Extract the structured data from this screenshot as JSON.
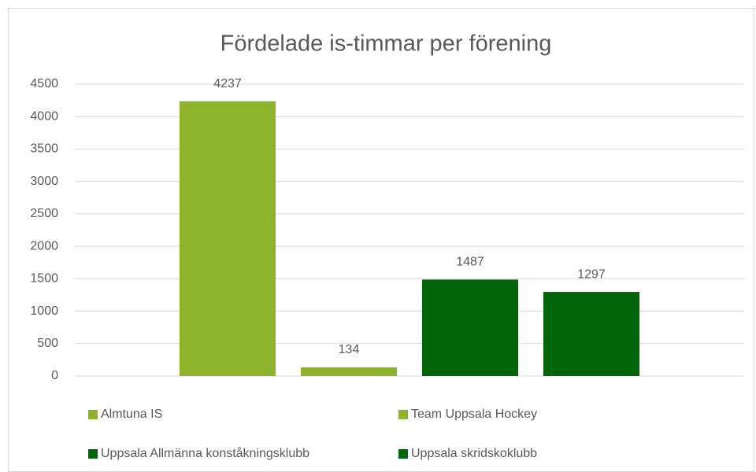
{
  "chart_data": {
    "type": "bar",
    "title": "Fördelade is-timmar per förening",
    "categories": [
      null
    ],
    "series": [
      {
        "name": "Almtuna IS",
        "color": "#8db42a",
        "values": [
          4237
        ]
      },
      {
        "name": "Team Uppsala Hockey",
        "color": "#8db42a",
        "values": [
          134
        ]
      },
      {
        "name": "Uppsala Allmänna konståkningsklubb",
        "color": "#006609",
        "values": [
          1487
        ]
      },
      {
        "name": "Uppsala skridskoklubb",
        "color": "#006609",
        "values": [
          1297
        ]
      }
    ],
    "ylim": [
      0,
      4500
    ],
    "yticks": [
      0,
      500,
      1000,
      1500,
      2000,
      2500,
      3000,
      3500,
      4000,
      4500
    ],
    "grid": true,
    "data_labels": true,
    "legend": "bottom"
  }
}
